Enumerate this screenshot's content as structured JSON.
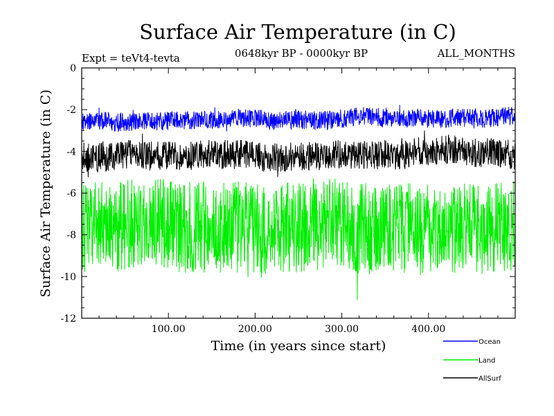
{
  "chart_data": {
    "type": "line",
    "title": "Surface Air Temperature (in C)",
    "subtitle_left": "Expt = teVt4-tevta",
    "subtitle_center": "0648kyr BP - 0000kyr BP",
    "subtitle_right": "ALL_MONTHS",
    "xlabel": "Time (in years since start)",
    "ylabel": "Surface Air Temperature (in C)",
    "xlim": [
      0,
      500
    ],
    "ylim": [
      -12,
      0
    ],
    "x_ticks": [
      100,
      200,
      300,
      400
    ],
    "x_tick_labels": [
      "100.00",
      "200.00",
      "300.00",
      "400.00"
    ],
    "y_ticks": [
      0,
      -2,
      -4,
      -6,
      -8,
      -10,
      -12
    ],
    "y_tick_labels": [
      "0",
      "-2",
      "-4",
      "-6",
      "-8",
      "-10",
      "-12"
    ],
    "legend_position": "bottom-right, outside plot",
    "series": [
      {
        "name": "Land",
        "color": "#00ee00",
        "mean": -7.6,
        "amplitude": 2.2,
        "x_sample": [
          0,
          50,
          100,
          150,
          200,
          250,
          300,
          350,
          400,
          450,
          500
        ],
        "y_approx_range": [
          -11.7,
          -4.3
        ]
      },
      {
        "name": "AllSurf",
        "color": "#000000",
        "mean": -4.3,
        "amplitude": 0.7,
        "x_sample": [
          0,
          50,
          100,
          150,
          200,
          250,
          300,
          350,
          400,
          450,
          500
        ],
        "y_approx_range": [
          -6.0,
          -3.0
        ]
      },
      {
        "name": "Ocean",
        "color": "#0000ff",
        "mean": -2.6,
        "amplitude": 0.45,
        "x_sample": [
          0,
          50,
          100,
          150,
          200,
          250,
          300,
          350,
          400,
          450,
          500
        ],
        "y_approx_range": [
          -3.6,
          -1.5
        ]
      }
    ],
    "legend_entries": [
      "Ocean",
      "Land",
      "AllSurf"
    ],
    "legend_colors": [
      "#0000ff",
      "#00ee00",
      "#000000"
    ]
  }
}
